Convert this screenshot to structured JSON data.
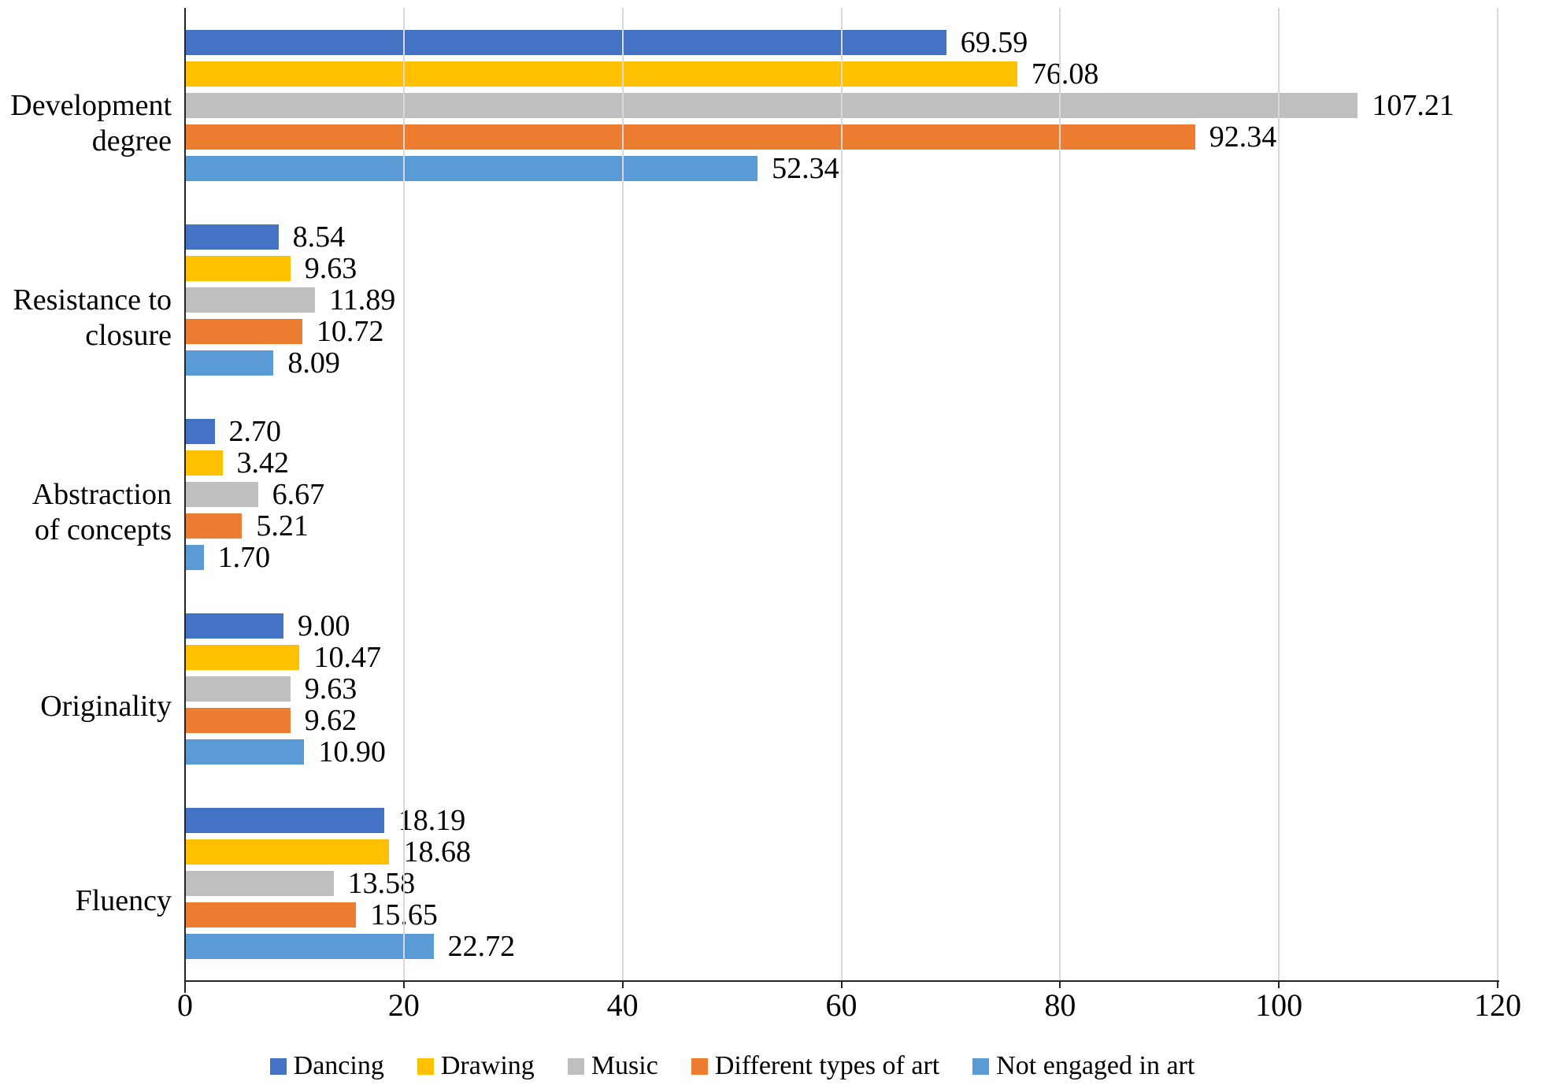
{
  "chart_data": {
    "type": "bar",
    "orientation": "horizontal",
    "title": "",
    "categories": [
      "Development degree",
      "Resistance to closure",
      "Abstraction of concepts",
      "Originality",
      "Fluency"
    ],
    "series": [
      {
        "name": "Dancing",
        "color": "#4472C4",
        "values": [
          69.59,
          8.54,
          2.7,
          9.0,
          18.19
        ],
        "labels": [
          "69.59",
          "8.54",
          "2.70",
          "9.00",
          "18.19"
        ]
      },
      {
        "name": "Drawing",
        "color": "#FFC000",
        "values": [
          76.08,
          9.63,
          3.42,
          10.47,
          18.68
        ],
        "labels": [
          "76.08",
          "9.63",
          "3.42",
          "10.47",
          "18.68"
        ]
      },
      {
        "name": "Music",
        "color": "#BFBFBF",
        "values": [
          107.21,
          11.89,
          6.67,
          9.63,
          13.58
        ],
        "labels": [
          "107.21",
          "11.89",
          "6.67",
          "9.63",
          "13.58"
        ]
      },
      {
        "name": "Different types of art",
        "color": "#ED7D31",
        "values": [
          92.34,
          10.72,
          5.21,
          9.62,
          15.65
        ],
        "labels": [
          "92.34",
          "10.72",
          "5.21",
          "9.62",
          "15.65"
        ]
      },
      {
        "name": "Not engaged in art",
        "color": "#5B9BD5",
        "values": [
          52.34,
          8.09,
          1.7,
          10.9,
          22.72
        ],
        "labels": [
          "52.34",
          "8.09",
          "1.70",
          "10.90",
          "22.72"
        ]
      }
    ],
    "x_axis": {
      "min": 0,
      "max": 120,
      "tick_values": [
        0,
        20,
        40,
        60,
        80,
        100,
        120
      ],
      "tick_labels": [
        "0",
        "20",
        "40",
        "60",
        "80",
        "100",
        "120"
      ]
    },
    "grid": "vertical",
    "legend_position": "bottom",
    "colors": {
      "gridline": "#D9D9D9",
      "axis": "#262626",
      "text": "#000000",
      "background": "#FFFFFF"
    }
  }
}
